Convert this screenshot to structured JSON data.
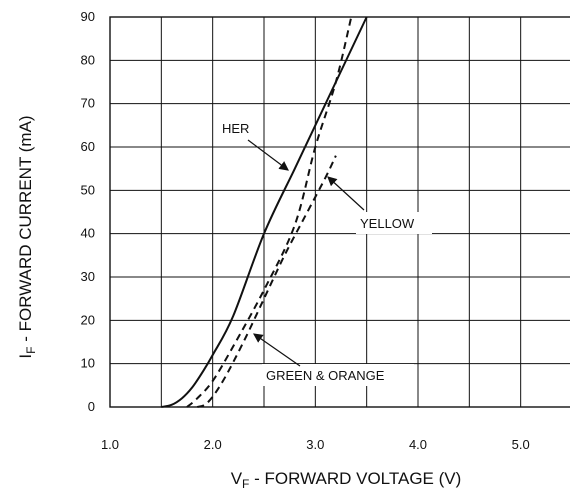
{
  "chart_data": {
    "type": "line",
    "title": "",
    "xlabel": {
      "main": "V",
      "sub": "F",
      "rest": " - FORWARD VOLTAGE (V)"
    },
    "ylabel": {
      "main": "I",
      "sub": "F",
      "rest": " - FORWARD CURRENT (mA)"
    },
    "xlim": [
      1.0,
      5.5
    ],
    "ylim": [
      0,
      90
    ],
    "x_tick_labels": [
      "1.0",
      "2.0",
      "3.0",
      "4.0",
      "5.0"
    ],
    "y_tick_labels": [
      "0",
      "10",
      "20",
      "30",
      "40",
      "50",
      "60",
      "70",
      "80",
      "90"
    ],
    "grid": true,
    "series": [
      {
        "name": "HER",
        "style": "solid",
        "x": [
          1.5,
          1.6,
          1.7,
          1.8,
          1.9,
          2.0,
          2.2,
          2.5,
          2.8,
          3.0,
          3.5
        ],
        "y": [
          0,
          0.5,
          2,
          4.5,
          8,
          12,
          21,
          40,
          55,
          65,
          90
        ]
      },
      {
        "name": "YELLOW",
        "style": "dashed",
        "x": [
          1.75,
          1.85,
          2.0,
          2.2,
          2.5,
          2.8,
          3.0,
          3.2,
          3.35
        ],
        "y": [
          0,
          2,
          6,
          14,
          27,
          42,
          60,
          75,
          90
        ]
      },
      {
        "name": "GREEN & ORANGE",
        "style": "dashed",
        "x": [
          1.85,
          1.95,
          2.1,
          2.3,
          2.5,
          2.7,
          2.9,
          3.1,
          3.2
        ],
        "y": [
          0,
          1,
          6,
          15,
          25,
          35,
          44,
          53,
          58
        ]
      }
    ],
    "annotations": [
      {
        "text": "HER",
        "series": "HER"
      },
      {
        "text": "YELLOW",
        "series": "YELLOW"
      },
      {
        "text": "GREEN & ORANGE",
        "series": "GREEN & ORANGE"
      }
    ]
  }
}
